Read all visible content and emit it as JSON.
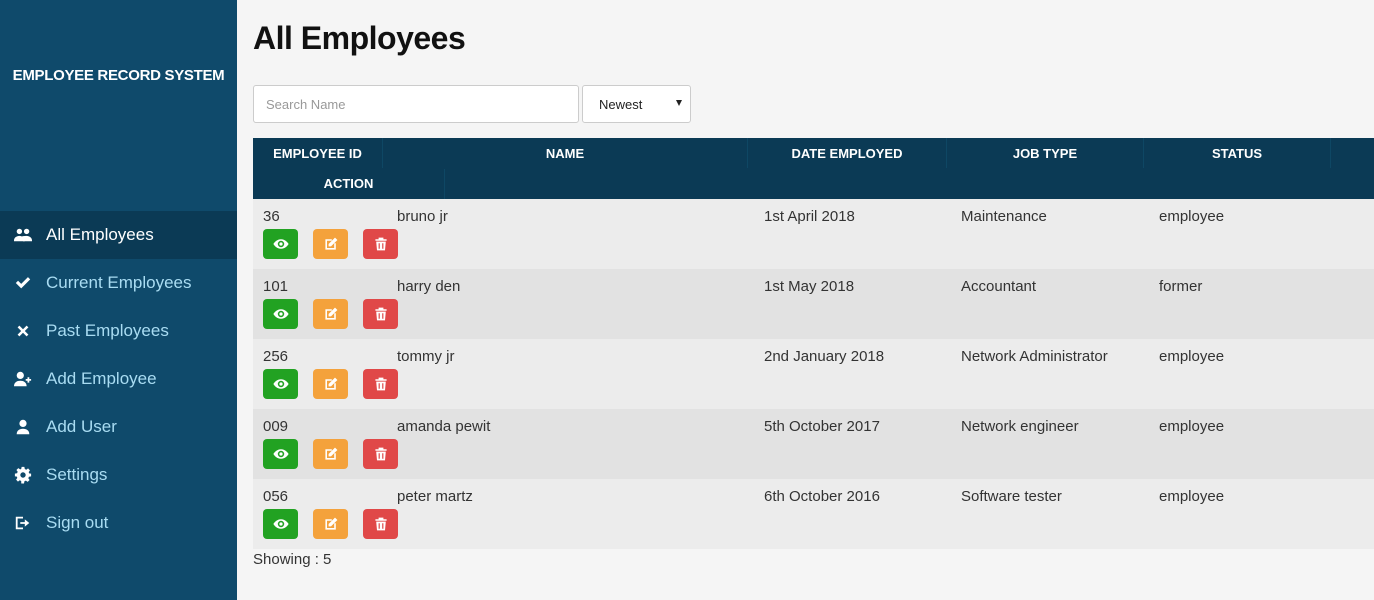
{
  "sidebar": {
    "brand": "EMPLOYEE RECORD SYSTEM",
    "items": [
      {
        "label": "All Employees",
        "icon": "users-icon",
        "active": true
      },
      {
        "label": "Current Employees",
        "icon": "check-icon"
      },
      {
        "label": "Past Employees",
        "icon": "close-icon"
      },
      {
        "label": "Add Employee",
        "icon": "user-plus-icon"
      },
      {
        "label": "Add User",
        "icon": "user-icon"
      },
      {
        "label": "Settings",
        "icon": "gear-icon"
      },
      {
        "label": "Sign out",
        "icon": "sign-out-icon"
      }
    ]
  },
  "main": {
    "title": "All Employees",
    "search_placeholder": "Search Name",
    "sort_value": "Newest",
    "columns": {
      "id": "EMPLOYEE ID",
      "name": "NAME",
      "date": "DATE EMPLOYED",
      "job": "JOB TYPE",
      "status": "STATUS",
      "action": "ACTION"
    },
    "rows": [
      {
        "id": "36",
        "name": "bruno jr",
        "date": "1st April 2018",
        "job": "Maintenance",
        "status": "employee"
      },
      {
        "id": "101",
        "name": "harry den",
        "date": "1st May 2018",
        "job": "Accountant",
        "status": "former"
      },
      {
        "id": "256",
        "name": "tommy jr",
        "date": "2nd January 2018",
        "job": "Network Administrator",
        "status": "employee"
      },
      {
        "id": "009",
        "name": "amanda pewit",
        "date": "5th October 2017",
        "job": "Network engineer",
        "status": "employee"
      },
      {
        "id": "056",
        "name": "peter martz",
        "date": "6th October 2016",
        "job": "Software tester",
        "status": "employee"
      }
    ],
    "showing": "Showing : 5"
  },
  "colors": {
    "sidebar_bg": "#0f4a6b",
    "header_bg": "#0b3a55",
    "view": "#22a222",
    "edit": "#f4a23c",
    "delete": "#e04848"
  }
}
